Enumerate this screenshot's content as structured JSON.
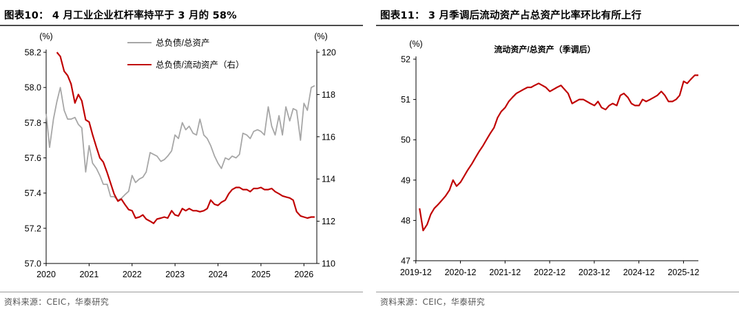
{
  "left": {
    "title": "图表10： 4 月工业企业杠杆率持平于 3 月的 58%",
    "source": "资料来源：CEIC，华泰研究"
  },
  "right": {
    "title": "图表11： 3 月季调后流动资产占总资产比率环比有所上行",
    "source": "资料来源：CEIC，华泰研究"
  },
  "chart_data": [
    {
      "type": "line",
      "title": "",
      "ylabel_left": "(%)",
      "ylabel_right": "(%)",
      "x_ticks": [
        "2020",
        "2021",
        "2022",
        "2023",
        "2024",
        "2025",
        "2026"
      ],
      "x_range": [
        2020.0,
        2026.3
      ],
      "ylim_left": [
        57.0,
        58.2
      ],
      "yticks_left": [
        "57.0",
        "57.2",
        "57.4",
        "57.6",
        "57.8",
        "58.0",
        "58.2"
      ],
      "ylim_right": [
        110,
        120
      ],
      "yticks_right": [
        "110",
        "112",
        "114",
        "116",
        "118",
        "120"
      ],
      "grid": false,
      "legend_position": "top-center",
      "colors": {
        "series1": "#a6a6a6",
        "series2": "#c00000"
      },
      "series": [
        {
          "name": "总负债/总资产",
          "axis": "left",
          "x": [
            2020.0,
            2020.08,
            2020.17,
            2020.25,
            2020.33,
            2020.42,
            2020.5,
            2020.58,
            2020.67,
            2020.75,
            2020.83,
            2020.92,
            2021.0,
            2021.08,
            2021.17,
            2021.25,
            2021.33,
            2021.42,
            2021.5,
            2021.58,
            2021.67,
            2021.75,
            2021.83,
            2021.92,
            2022.0,
            2022.08,
            2022.17,
            2022.25,
            2022.33,
            2022.42,
            2022.5,
            2022.58,
            2022.67,
            2022.75,
            2022.83,
            2022.92,
            2023.0,
            2023.08,
            2023.17,
            2023.25,
            2023.33,
            2023.42,
            2023.5,
            2023.58,
            2023.67,
            2023.75,
            2023.83,
            2023.92,
            2024.0,
            2024.08,
            2024.17,
            2024.25,
            2024.33,
            2024.42,
            2024.5,
            2024.58,
            2024.67,
            2024.75,
            2024.83,
            2024.92,
            2025.0,
            2025.08,
            2025.17,
            2025.25,
            2025.33,
            2025.42,
            2025.5,
            2025.58,
            2025.67,
            2025.75,
            2025.83,
            2025.92,
            2026.0,
            2026.08,
            2026.17,
            2026.25
          ],
          "values": [
            57.85,
            57.66,
            57.82,
            57.92,
            58.0,
            57.87,
            57.82,
            57.82,
            57.83,
            57.79,
            57.77,
            57.52,
            57.67,
            57.57,
            57.54,
            57.5,
            57.45,
            57.45,
            57.38,
            57.38,
            57.36,
            57.37,
            57.39,
            57.41,
            57.5,
            57.46,
            57.48,
            57.49,
            57.52,
            57.63,
            57.62,
            57.61,
            57.58,
            57.59,
            57.61,
            57.64,
            57.73,
            57.71,
            57.8,
            57.76,
            57.78,
            57.74,
            57.73,
            57.82,
            57.73,
            57.71,
            57.67,
            57.61,
            57.57,
            57.54,
            57.6,
            57.59,
            57.61,
            57.6,
            57.62,
            57.74,
            57.73,
            57.71,
            57.75,
            57.76,
            57.75,
            57.73,
            57.89,
            57.78,
            57.73,
            57.84,
            57.73,
            57.89,
            57.81,
            57.88,
            57.87,
            57.7,
            57.91,
            57.87,
            58.0,
            58.01
          ]
        },
        {
          "name": "总负债/流动资产（右）",
          "axis": "right",
          "x": [
            2020.25,
            2020.33,
            2020.42,
            2020.5,
            2020.58,
            2020.67,
            2020.75,
            2020.83,
            2020.92,
            2021.0,
            2021.08,
            2021.17,
            2021.25,
            2021.33,
            2021.42,
            2021.5,
            2021.58,
            2021.67,
            2021.75,
            2021.83,
            2021.92,
            2022.0,
            2022.08,
            2022.17,
            2022.25,
            2022.33,
            2022.42,
            2022.5,
            2022.58,
            2022.67,
            2022.75,
            2022.83,
            2022.92,
            2023.0,
            2023.08,
            2023.17,
            2023.25,
            2023.33,
            2023.42,
            2023.5,
            2023.58,
            2023.67,
            2023.75,
            2023.83,
            2023.92,
            2024.0,
            2024.08,
            2024.17,
            2024.25,
            2024.33,
            2024.42,
            2024.5,
            2024.58,
            2024.67,
            2024.75,
            2024.83,
            2024.92,
            2025.0,
            2025.08,
            2025.17,
            2025.25,
            2025.33,
            2025.42,
            2025.5,
            2025.58,
            2025.67,
            2025.75,
            2025.83,
            2025.92,
            2026.0,
            2026.08,
            2026.17,
            2026.25
          ],
          "values": [
            120.0,
            119.8,
            119.1,
            118.9,
            118.5,
            117.6,
            118.0,
            117.7,
            116.8,
            116.7,
            116.1,
            115.5,
            115.0,
            114.8,
            114.3,
            113.8,
            113.3,
            112.95,
            113.05,
            112.8,
            112.55,
            112.5,
            112.15,
            112.2,
            112.3,
            112.1,
            112.0,
            111.9,
            112.1,
            112.15,
            112.2,
            112.15,
            112.5,
            112.3,
            112.25,
            112.6,
            112.5,
            112.6,
            112.5,
            112.5,
            112.45,
            112.5,
            112.6,
            113.0,
            112.8,
            112.75,
            112.9,
            113.0,
            113.3,
            113.5,
            113.6,
            113.6,
            113.5,
            113.5,
            113.4,
            113.55,
            113.55,
            113.6,
            113.5,
            113.5,
            113.55,
            113.4,
            113.3,
            113.2,
            113.15,
            113.1,
            113.0,
            112.45,
            112.25,
            112.2,
            112.15,
            112.2,
            112.2
          ]
        }
      ]
    },
    {
      "type": "line",
      "title": "流动资产/总资产（季调后）",
      "ylabel": "(%)",
      "x_ticks": [
        "2019-12",
        "2020-12",
        "2021-12",
        "2022-12",
        "2023-12",
        "2024-12",
        "2025-12"
      ],
      "x_range": [
        2019.92,
        2026.25
      ],
      "ylim": [
        47,
        52
      ],
      "yticks": [
        "47",
        "48",
        "49",
        "50",
        "51",
        "52"
      ],
      "grid": false,
      "colors": {
        "series1": "#c00000"
      },
      "series": [
        {
          "name": "",
          "x": [
            2020.0,
            2020.08,
            2020.17,
            2020.25,
            2020.33,
            2020.42,
            2020.5,
            2020.58,
            2020.67,
            2020.75,
            2020.83,
            2020.92,
            2021.0,
            2021.08,
            2021.17,
            2021.25,
            2021.33,
            2021.42,
            2021.5,
            2021.58,
            2021.67,
            2021.75,
            2021.83,
            2021.92,
            2022.0,
            2022.08,
            2022.17,
            2022.25,
            2022.33,
            2022.42,
            2022.5,
            2022.58,
            2022.67,
            2022.75,
            2022.83,
            2022.92,
            2023.0,
            2023.08,
            2023.17,
            2023.25,
            2023.33,
            2023.42,
            2023.5,
            2023.58,
            2023.67,
            2023.75,
            2023.83,
            2023.92,
            2024.0,
            2024.08,
            2024.17,
            2024.25,
            2024.33,
            2024.42,
            2024.5,
            2024.58,
            2024.67,
            2024.75,
            2024.83,
            2024.92,
            2025.0,
            2025.08,
            2025.17,
            2025.25,
            2025.33,
            2025.42,
            2025.5,
            2025.58,
            2025.67,
            2025.75,
            2025.83,
            2025.92,
            2026.0,
            2026.08,
            2026.17,
            2026.25
          ],
          "values": [
            48.3,
            47.75,
            47.9,
            48.15,
            48.3,
            48.4,
            48.5,
            48.6,
            48.75,
            49.0,
            48.85,
            48.95,
            49.1,
            49.25,
            49.4,
            49.55,
            49.7,
            49.85,
            50.0,
            50.15,
            50.3,
            50.55,
            50.7,
            50.8,
            50.95,
            51.05,
            51.15,
            51.2,
            51.25,
            51.3,
            51.3,
            51.35,
            51.4,
            51.35,
            51.3,
            51.2,
            51.25,
            51.3,
            51.35,
            51.25,
            51.15,
            50.9,
            50.95,
            51.0,
            51.0,
            50.95,
            50.9,
            50.85,
            50.95,
            50.8,
            50.75,
            50.85,
            50.9,
            50.85,
            51.1,
            51.15,
            51.05,
            50.9,
            50.85,
            50.85,
            51.0,
            50.95,
            51.0,
            51.05,
            51.1,
            51.2,
            51.1,
            50.95,
            50.95,
            51.0,
            51.1,
            51.45,
            51.4,
            51.5,
            51.6,
            51.6
          ]
        }
      ]
    }
  ]
}
